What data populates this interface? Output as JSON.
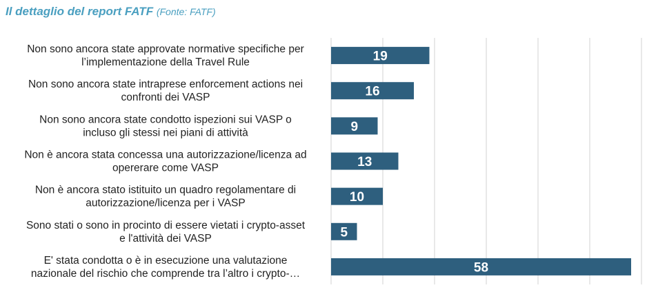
{
  "title": {
    "main": "Il dettaglio del report FATF",
    "source": "Fonte: FATF"
  },
  "colors": {
    "title": "#4a9fc0",
    "bar": "#2e5f7e",
    "grid": "#d0d0d0",
    "label": "#222222",
    "value": "#ffffff"
  },
  "chart_data": {
    "type": "bar",
    "orientation": "horizontal",
    "title": "Il dettaglio del report FATF (Fonte: FATF)",
    "xlim": [
      0,
      60
    ],
    "grid": "vertical",
    "categories": [
      [
        "Non sono ancora state approvate normative specifiche per",
        "l’implementazione  della Travel Rule"
      ],
      [
        "Non sono ancora state intraprese enforcement actions nei",
        "confronti dei VASP"
      ],
      [
        "Non sono ancora state condotto ispezioni sui VASP o",
        "incluso gli stessi nei piani di attività"
      ],
      [
        "Non è ancora stata concessa una autorizzazione/licenza ad",
        "opererare come VASP"
      ],
      [
        "Non è ancora stato istituito un quadro regolamentare di",
        "autorizzazione/licenza per i VASP"
      ],
      [
        "Sono stati o sono in procinto di essere vietati i crypto-asset",
        "e l'attività dei VASP"
      ],
      [
        "E' stata condotta o è in esecuzione una valutazione",
        "nazionale del rischio che comprende tra l’altro i crypto-…"
      ]
    ],
    "values": [
      19,
      16,
      9,
      13,
      10,
      5,
      58
    ]
  }
}
